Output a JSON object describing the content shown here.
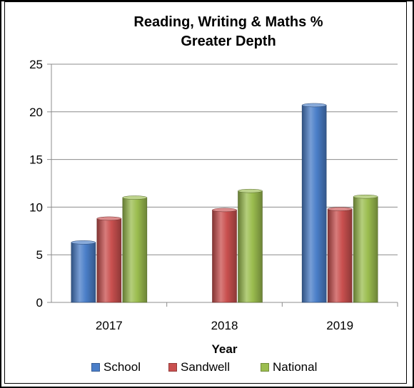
{
  "chart_data": {
    "type": "bar",
    "title": [
      "Reading, Writing & Maths %",
      "Greater Depth"
    ],
    "xlabel": "Year",
    "ylabel": "",
    "categories": [
      "2017",
      "2018",
      "2019"
    ],
    "series": [
      {
        "name": "School",
        "values": [
          6.3,
          null,
          20.7
        ],
        "color": "#4a7ec8"
      },
      {
        "name": "Sandwell",
        "values": [
          8.8,
          9.7,
          9.8
        ],
        "color": "#c9504f"
      },
      {
        "name": "National",
        "values": [
          11,
          11.7,
          11.1
        ],
        "color": "#9bbd4f"
      }
    ],
    "ylim": [
      0,
      25
    ],
    "yticks": [
      0,
      5,
      10,
      15,
      20,
      25
    ],
    "grid": true,
    "legend": "bottom"
  }
}
